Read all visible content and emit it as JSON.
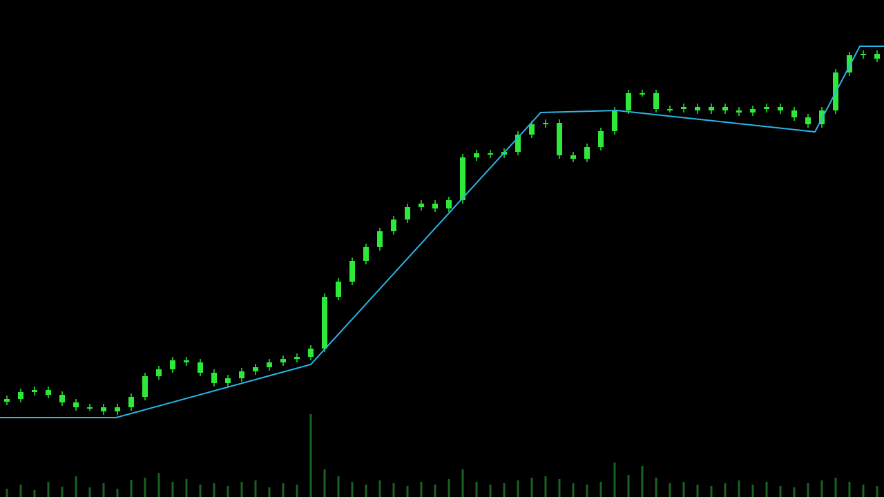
{
  "chart_data": {
    "type": "candlestick",
    "x": [
      0,
      1,
      2,
      3,
      4,
      5,
      6,
      7,
      8,
      9,
      10,
      11,
      12,
      13,
      14,
      15,
      16,
      17,
      18,
      19,
      20,
      21,
      22,
      23,
      24,
      25,
      26,
      27,
      28,
      29,
      30,
      31,
      32,
      33,
      34,
      35,
      36,
      37,
      38,
      39,
      40,
      41,
      42,
      43,
      44,
      45,
      46,
      47,
      48,
      49,
      50,
      51,
      52,
      53,
      54,
      55,
      56,
      57,
      58,
      59,
      60,
      61,
      62,
      63
    ],
    "open": [
      138,
      142,
      152,
      155,
      148,
      137,
      130,
      130,
      124,
      130,
      145,
      175,
      185,
      198,
      195,
      180,
      165,
      172,
      182,
      188,
      195,
      200,
      203,
      215,
      290,
      312,
      342,
      362,
      385,
      402,
      420,
      425,
      418,
      430,
      492,
      498,
      496,
      500,
      525,
      540,
      542,
      495,
      490,
      507,
      530,
      560,
      585,
      585,
      562,
      562,
      565,
      560,
      565,
      560,
      557,
      562,
      565,
      560,
      550,
      540,
      560,
      615,
      640,
      642
    ],
    "high": [
      147,
      157,
      160,
      160,
      153,
      142,
      135,
      135,
      135,
      150,
      180,
      190,
      203,
      203,
      200,
      185,
      177,
      187,
      193,
      200,
      205,
      208,
      220,
      295,
      317,
      347,
      367,
      390,
      407,
      425,
      430,
      430,
      435,
      497,
      503,
      503,
      505,
      530,
      545,
      547,
      547,
      500,
      512,
      535,
      565,
      590,
      590,
      590,
      567,
      570,
      570,
      570,
      570,
      565,
      567,
      570,
      570,
      565,
      555,
      565,
      620,
      645,
      647,
      647
    ],
    "low": [
      133,
      137,
      147,
      143,
      132,
      125,
      125,
      119,
      119,
      125,
      140,
      170,
      180,
      190,
      175,
      160,
      160,
      167,
      177,
      183,
      190,
      195,
      198,
      210,
      285,
      307,
      337,
      357,
      380,
      397,
      415,
      413,
      413,
      425,
      487,
      491,
      491,
      495,
      520,
      535,
      490,
      485,
      485,
      502,
      525,
      555,
      580,
      557,
      557,
      557,
      555,
      555,
      555,
      552,
      552,
      557,
      555,
      545,
      535,
      535,
      555,
      610,
      635,
      630
    ],
    "close": [
      142,
      152,
      155,
      148,
      137,
      130,
      130,
      124,
      130,
      145,
      175,
      185,
      198,
      195,
      180,
      165,
      172,
      182,
      188,
      195,
      200,
      203,
      215,
      290,
      312,
      342,
      362,
      385,
      402,
      420,
      425,
      418,
      430,
      492,
      498,
      496,
      500,
      525,
      540,
      542,
      495,
      490,
      507,
      530,
      560,
      585,
      585,
      562,
      562,
      565,
      560,
      565,
      560,
      557,
      562,
      565,
      560,
      550,
      540,
      560,
      615,
      640,
      642,
      635
    ],
    "color": "#2ee83a",
    "xlim": [
      -0.5,
      63.5
    ],
    "ylim": [
      0,
      720
    ],
    "trend_line": {
      "x": [
        -0.5,
        7.9,
        22,
        38.65,
        44.15,
        58.5,
        61.75,
        63.5
      ],
      "values": [
        115,
        115,
        192,
        557,
        560,
        529,
        653,
        653
      ],
      "color": "#29b6e8"
    },
    "volume": {
      "values": [
        12,
        18,
        10,
        22,
        15,
        30,
        14,
        20,
        12,
        25,
        28,
        35,
        22,
        26,
        18,
        20,
        16,
        22,
        24,
        14,
        20,
        18,
        120,
        40,
        30,
        22,
        18,
        24,
        20,
        16,
        22,
        18,
        26,
        40,
        22,
        18,
        20,
        24,
        28,
        30,
        26,
        20,
        18,
        22,
        50,
        32,
        45,
        28,
        20,
        22,
        18,
        16,
        20,
        24,
        18,
        22,
        16,
        14,
        20,
        24,
        28,
        22,
        18,
        16
      ],
      "color": "#1f7a2a",
      "ylim": [
        0,
        130
      ]
    }
  }
}
